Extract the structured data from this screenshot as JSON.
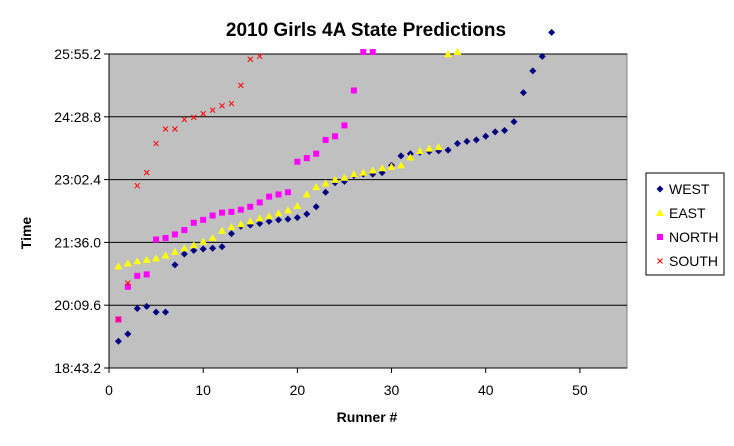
{
  "chart_data": {
    "type": "scatter",
    "title": "2010 Girls 4A State Predictions",
    "xlabel": "Runner #",
    "ylabel": "Time",
    "xlim": [
      0,
      55
    ],
    "x_ticks": [
      "0",
      "10",
      "20",
      "30",
      "40",
      "50"
    ],
    "ylim_seconds": [
      1123.2,
      1555.2
    ],
    "y_ticks": [
      "18:43.2",
      "20:09.6",
      "21:36.0",
      "23:02.4",
      "24:28.8",
      "25:55.2"
    ],
    "grid": "horizontal",
    "legend": "right",
    "plot_background": "#c0c0c0",
    "series": [
      {
        "name": "WEST",
        "marker": "diamond",
        "color": "#000080",
        "x": [
          1,
          2,
          3,
          4,
          5,
          6,
          7,
          8,
          9,
          10,
          11,
          12,
          13,
          14,
          15,
          16,
          17,
          18,
          19,
          20,
          21,
          22,
          23,
          24,
          25,
          26,
          27,
          28,
          29,
          30,
          31,
          32,
          33,
          34,
          35,
          36,
          37,
          38,
          39,
          40,
          41,
          42,
          43,
          44,
          45,
          46,
          47
        ],
        "y": [
          "19:20",
          "19:30",
          "20:05",
          "20:08",
          "20:00",
          "20:00",
          "21:05",
          "21:20",
          "21:25",
          "21:27",
          "21:28",
          "21:30",
          "21:48",
          "21:58",
          "22:00",
          "22:02",
          "22:05",
          "22:07",
          "22:08",
          "22:10",
          "22:15",
          "22:25",
          "22:45",
          "22:58",
          "23:00",
          "23:08",
          "23:10",
          "23:10",
          "23:12",
          "23:22",
          "23:35",
          "23:38",
          "23:40",
          "23:41",
          "23:42",
          "23:43",
          "23:52",
          "23:55",
          "23:57",
          "24:02",
          "24:08",
          "24:10",
          "24:22",
          "25:02",
          "25:32",
          "25:52",
          "26:25"
        ]
      },
      {
        "name": "EAST",
        "marker": "triangle",
        "color": "#ffff00",
        "x": [
          1,
          2,
          3,
          4,
          5,
          6,
          7,
          8,
          9,
          10,
          11,
          12,
          13,
          14,
          15,
          16,
          17,
          18,
          19,
          20,
          21,
          22,
          23,
          24,
          25,
          26,
          27,
          28,
          29,
          30,
          31,
          32,
          33,
          34,
          35,
          36,
          37
        ],
        "y": [
          "21:03",
          "21:07",
          "21:10",
          "21:12",
          "21:14",
          "21:18",
          "21:23",
          "21:28",
          "21:32",
          "21:37",
          "21:42",
          "21:52",
          "21:57",
          "22:01",
          "22:05",
          "22:09",
          "22:12",
          "22:16",
          "22:20",
          "22:26",
          "22:42",
          "22:52",
          "22:57",
          "23:02",
          "23:05",
          "23:10",
          "23:12",
          "23:15",
          "23:18",
          "23:20",
          "23:22",
          "23:33",
          "23:42",
          "23:45",
          "23:47",
          "25:55",
          "25:58"
        ]
      },
      {
        "name": "NORTH",
        "marker": "square",
        "color": "#ff00ff",
        "x": [
          1,
          2,
          3,
          4,
          5,
          6,
          7,
          8,
          9,
          10,
          11,
          12,
          13,
          14,
          15,
          16,
          17,
          18,
          19,
          20,
          21,
          22,
          23,
          24,
          25,
          26,
          27,
          28
        ],
        "y": [
          "19:50",
          "20:35",
          "20:50",
          "20:52",
          "21:40",
          "21:42",
          "21:47",
          "21:53",
          "22:03",
          "22:07",
          "22:13",
          "22:17",
          "22:18",
          "22:21",
          "22:25",
          "22:31",
          "22:39",
          "22:42",
          "22:45",
          "23:27",
          "23:32",
          "23:38",
          "23:57",
          "24:02",
          "24:17",
          "25:05",
          "25:58",
          "25:58"
        ]
      },
      {
        "name": "SOUTH",
        "marker": "x",
        "color": "#ff0000",
        "x": [
          1,
          2,
          3,
          4,
          5,
          6,
          7,
          8,
          9,
          10,
          11,
          12,
          13,
          14,
          15,
          16
        ],
        "y": [
          "19:50",
          "20:40",
          "22:54",
          "23:12",
          "23:52",
          "24:12",
          "24:12",
          "24:25",
          "24:28",
          "24:33",
          "24:38",
          "24:44",
          "24:47",
          "25:12",
          "25:48",
          "25:52"
        ]
      }
    ]
  }
}
